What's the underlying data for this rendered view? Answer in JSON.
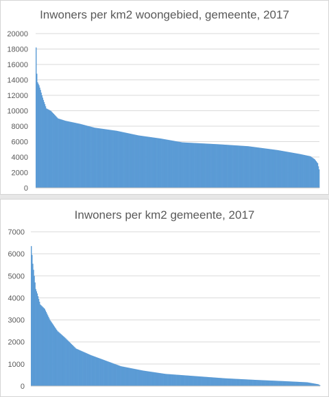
{
  "chart_data": [
    {
      "type": "bar",
      "title": "Inwoners per km2 woongebied, gemeente, 2017",
      "xlabel": "",
      "ylabel": "",
      "ylim": [
        0,
        20000
      ],
      "yticks": [
        0,
        2000,
        4000,
        6000,
        8000,
        10000,
        12000,
        14000,
        16000,
        18000,
        20000
      ],
      "grid": true,
      "legend": "none",
      "color": "#5b9bd5",
      "n_bars": 388,
      "sorted": "descending",
      "profile": [
        [
          0,
          18200
        ],
        [
          1,
          14800
        ],
        [
          2,
          13700
        ],
        [
          4,
          13300
        ],
        [
          6,
          12700
        ],
        [
          8,
          12000
        ],
        [
          10,
          11400
        ],
        [
          14,
          10300
        ],
        [
          20,
          10000
        ],
        [
          25,
          9500
        ],
        [
          30,
          9000
        ],
        [
          40,
          8700
        ],
        [
          60,
          8300
        ],
        [
          80,
          7800
        ],
        [
          110,
          7400
        ],
        [
          140,
          6800
        ],
        [
          170,
          6400
        ],
        [
          200,
          5900
        ],
        [
          250,
          5650
        ],
        [
          290,
          5400
        ],
        [
          330,
          4900
        ],
        [
          360,
          4400
        ],
        [
          375,
          4100
        ],
        [
          381,
          3700
        ],
        [
          385,
          3200
        ],
        [
          387,
          2400
        ]
      ]
    },
    {
      "type": "bar",
      "title": "Inwoners per km2 gemeente, 2017",
      "xlabel": "",
      "ylabel": "",
      "ylim": [
        0,
        7000
      ],
      "yticks": [
        0,
        1000,
        2000,
        3000,
        4000,
        5000,
        6000,
        7000
      ],
      "grid": true,
      "legend": "none",
      "color": "#5b9bd5",
      "n_bars": 388,
      "sorted": "descending",
      "profile": [
        [
          0,
          6350
        ],
        [
          2,
          5550
        ],
        [
          4,
          5000
        ],
        [
          6,
          4400
        ],
        [
          8,
          4200
        ],
        [
          12,
          3700
        ],
        [
          18,
          3500
        ],
        [
          25,
          3000
        ],
        [
          35,
          2500
        ],
        [
          45,
          2200
        ],
        [
          60,
          1700
        ],
        [
          80,
          1400
        ],
        [
          100,
          1150
        ],
        [
          120,
          900
        ],
        [
          150,
          700
        ],
        [
          180,
          550
        ],
        [
          220,
          450
        ],
        [
          260,
          350
        ],
        [
          300,
          280
        ],
        [
          340,
          220
        ],
        [
          370,
          170
        ],
        [
          385,
          80
        ],
        [
          387,
          40
        ]
      ]
    }
  ]
}
